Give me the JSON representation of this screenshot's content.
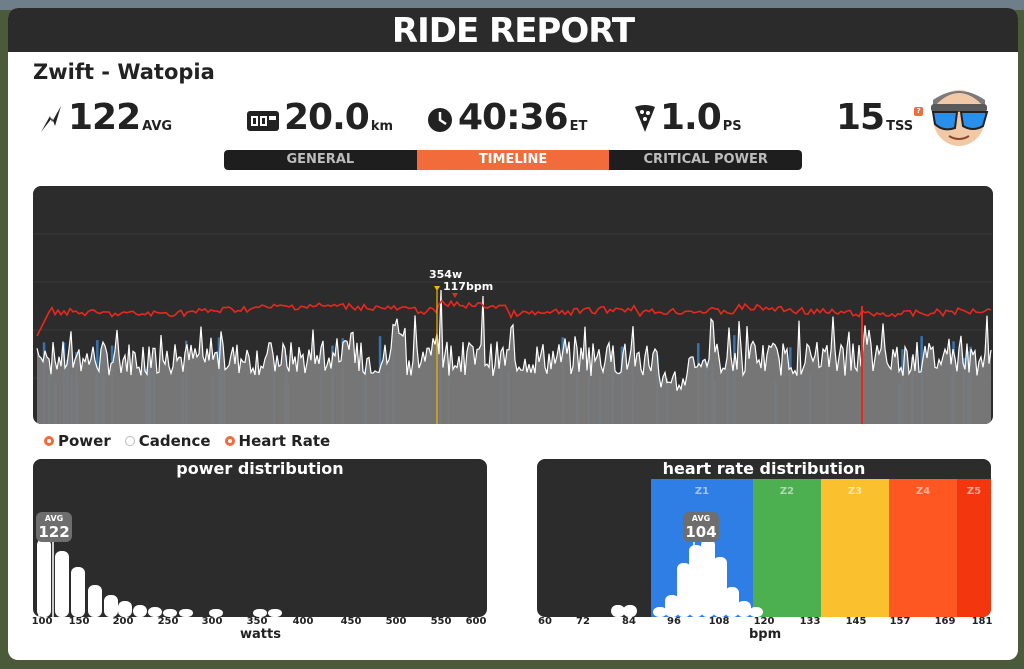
{
  "title": "RIDE REPORT",
  "route": "Zwift - Watopia",
  "stats": {
    "power": {
      "value": "122",
      "unit": "AVG",
      "icon": "lightning-icon"
    },
    "distance": {
      "value": "20.0",
      "unit": "km",
      "icon": "odometer-icon"
    },
    "time": {
      "value": "40:36",
      "unit": "ET",
      "icon": "clock-icon"
    },
    "pizza": {
      "value": "1.0",
      "unit": "PS",
      "icon": "pizza-icon"
    },
    "tss": {
      "value": "15",
      "unit": "TSS",
      "help": "?"
    }
  },
  "tabs": [
    {
      "label": "GENERAL",
      "active": false
    },
    {
      "label": "TIMELINE",
      "active": true
    },
    {
      "label": "CRITICAL POWER",
      "active": false
    }
  ],
  "timeline": {
    "peak_power_label": "354w",
    "peak_hr_label": "117bpm",
    "colors": {
      "power": "#ffffff",
      "heart_rate": "#e8281e",
      "zone_blue": "#3a7bbf",
      "fill": "#7a7a7a"
    }
  },
  "legend": [
    {
      "label": "Power",
      "color": "#f26b3a",
      "checked": true
    },
    {
      "label": "Cadence",
      "color": "#ffffff",
      "checked": false
    },
    {
      "label": "Heart Rate",
      "color": "#f26b3a",
      "checked": true
    }
  ],
  "power_distribution": {
    "title": "power distribution",
    "xlabel": "watts",
    "ticks": [
      "100",
      "150",
      "200",
      "250",
      "300",
      "350",
      "400",
      "450",
      "500",
      "550",
      "600"
    ],
    "avg_label": "AVG",
    "avg_value": "122"
  },
  "hr_distribution": {
    "title": "heart rate distribution",
    "xlabel": "bpm",
    "ticks": [
      "60",
      "72",
      "84",
      "96",
      "108",
      "120",
      "133",
      "145",
      "157",
      "169",
      "181"
    ],
    "zones": [
      {
        "name": "Z1",
        "color": "#2f7ee6"
      },
      {
        "name": "Z2",
        "color": "#4caf50"
      },
      {
        "name": "Z3",
        "color": "#fbc02d"
      },
      {
        "name": "Z4",
        "color": "#ff5722"
      },
      {
        "name": "Z5",
        "color": "#f4360f"
      }
    ],
    "avg_label": "AVG",
    "avg_value": "104"
  }
}
